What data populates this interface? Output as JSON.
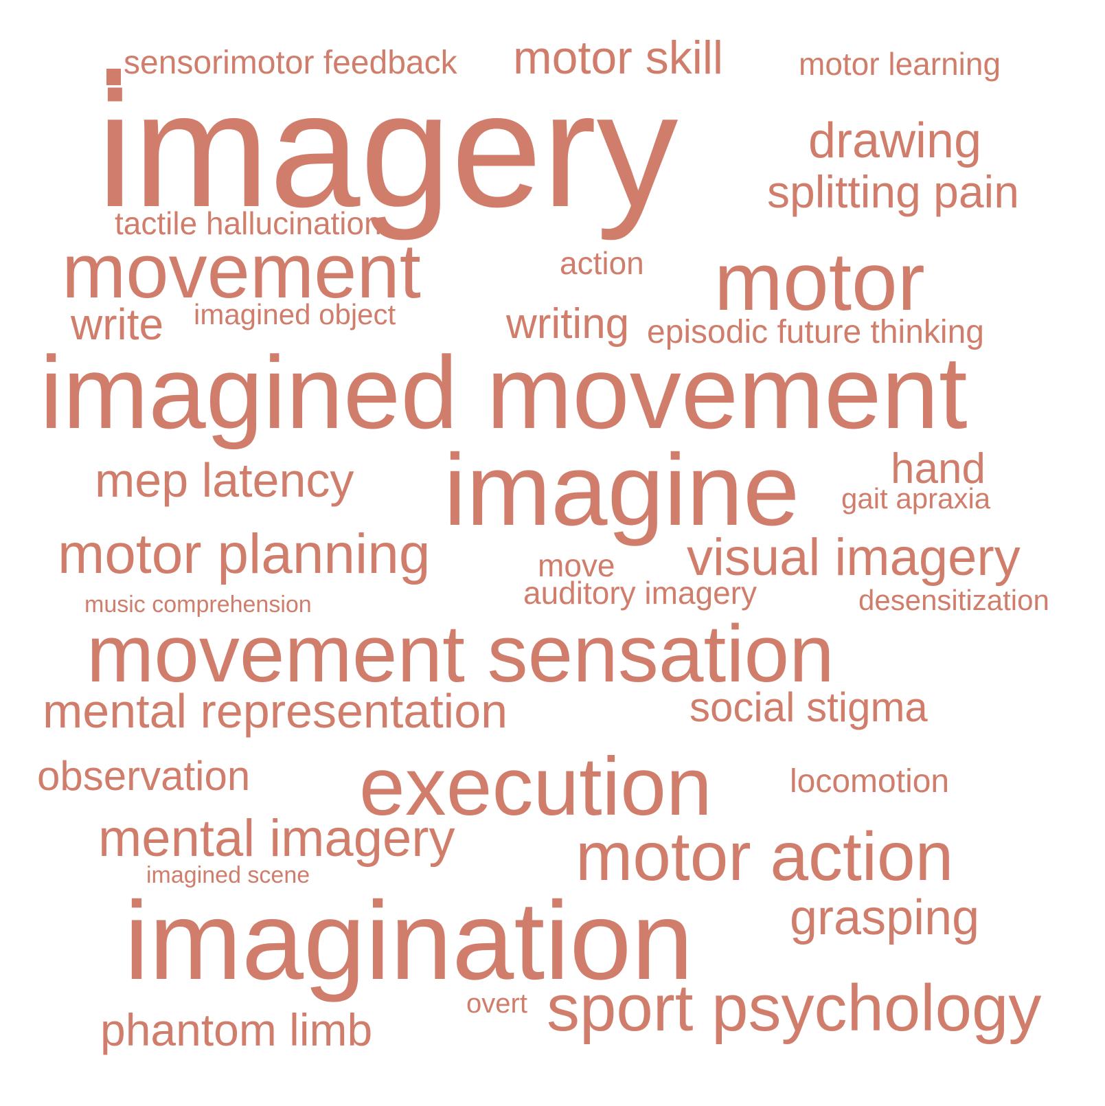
{
  "accent_color": "#d07d6b",
  "background_color": "#ffffff",
  "words": [
    "sensorimotor feedback",
    "motor skill",
    "motor learning",
    "imagery",
    "drawing",
    "splitting pain",
    "tactile hallucination",
    "movement",
    "action",
    "motor",
    "write",
    "imagined object",
    "writing",
    "episodic future thinking",
    "imagined movement",
    "mep latency",
    "imagine",
    "hand",
    "gait apraxia",
    "motor planning",
    "move",
    "visual imagery",
    "auditory imagery",
    "music comprehension",
    "desensitization",
    "movement sensation",
    "mental representation",
    "social stigma",
    "observation",
    "execution",
    "locomotion",
    "mental imagery",
    "motor action",
    "imagined scene",
    "grasping",
    "imagination",
    "overt",
    "sport psychology",
    "phantom limb"
  ]
}
